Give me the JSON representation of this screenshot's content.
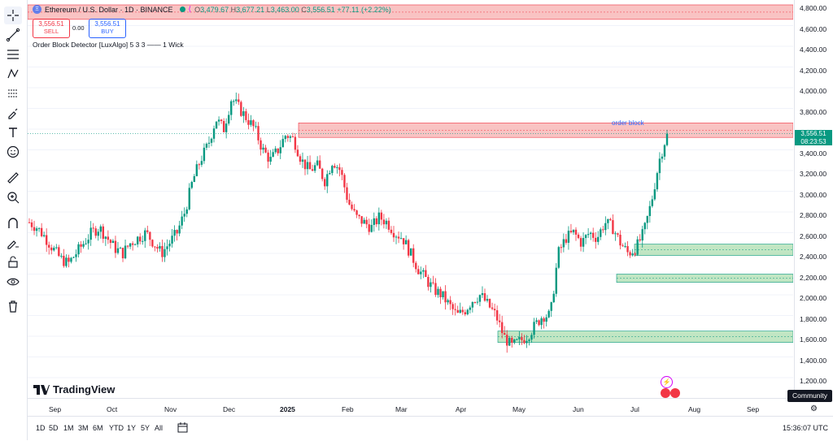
{
  "legend": {
    "symbol_icon": "ethereum-icon",
    "title": "Ethereum / U.S. Dollar · 1D · BINANCE",
    "o_label": "O",
    "o_value": "3,479.67",
    "h_label": "H",
    "h_value": "3,677.21",
    "l_label": "L",
    "l_value": "3,463.00",
    "c_label": "C",
    "c_value": "3,556.51",
    "change": "+77.11 (+2.22%)"
  },
  "trade": {
    "sell_price": "3,556.51",
    "sell_label": "SELL",
    "spread": "0.00",
    "buy_price": "3,556.51",
    "buy_label": "BUY"
  },
  "indicator": {
    "name": "Order Block Detector [LuxAlgo] 5 3 3 —— 1 Wick"
  },
  "annotations": {
    "order_block_label": "order block"
  },
  "price_tag": {
    "price": "3,556.51",
    "countdown": "08:23:53"
  },
  "price_axis": [
    "4,800.00",
    "4,600.00",
    "4,400.00",
    "4,200.00",
    "4,000.00",
    "3,800.00",
    "3,600.00",
    "3,400.00",
    "3,200.00",
    "3,000.00",
    "2,800.00",
    "2,600.00",
    "2,400.00",
    "2,200.00",
    "2,000.00",
    "1,800.00",
    "1,600.00",
    "1,400.00",
    "1,200.00"
  ],
  "time_axis": [
    "Sep",
    "Oct",
    "Nov",
    "Dec",
    "2025",
    "Feb",
    "Mar",
    "Apr",
    "May",
    "Jun",
    "Jul",
    "Aug",
    "Sep"
  ],
  "ranges": [
    "1D",
    "5D",
    "1M",
    "3M",
    "6M",
    "YTD",
    "1Y",
    "5Y",
    "All"
  ],
  "clock": "15:36:07 UTC",
  "community_label": "Community",
  "brand": "TradingView",
  "colors": {
    "up": "#089981",
    "down": "#f23645",
    "bearish_block": "#f7a9a9",
    "bullish_block": "#a6dba9",
    "accent": "#2962ff"
  },
  "chart_data": {
    "type": "candlestick",
    "symbol": "Ethereum / U.S. Dollar",
    "interval": "1D",
    "exchange": "BINANCE",
    "ylim": [
      1150,
      4850
    ],
    "x_ticks": [
      "Sep",
      "Oct",
      "Nov",
      "Dec",
      "2025",
      "Feb",
      "Mar",
      "Apr",
      "May",
      "Jun",
      "Jul",
      "Aug",
      "Sep"
    ],
    "series_closes": [
      2700,
      2650,
      2560,
      2450,
      2350,
      2300,
      2400,
      2500,
      2600,
      2650,
      2550,
      2450,
      2400,
      2500,
      2550,
      2600,
      2500,
      2400,
      2500,
      2600,
      2800,
      3100,
      3300,
      3450,
      3700,
      3600,
      3900,
      3800,
      3700,
      3600,
      3400,
      3300,
      3400,
      3550,
      3500,
      3300,
      3200,
      3250,
      3100,
      3300,
      3200,
      2900,
      2750,
      2700,
      2650,
      2750,
      2700,
      2600,
      2550,
      2400,
      2250,
      2150,
      2050,
      2000,
      1900,
      1800,
      1850,
      1950,
      2000,
      1900,
      1800,
      1600,
      1500,
      1550,
      1600,
      1700,
      1800,
      1800,
      2400,
      2550,
      2600,
      2500,
      2600,
      2550,
      2700,
      2650,
      2500,
      2400,
      2450,
      2600,
      2900,
      3300,
      3556.51
    ],
    "order_blocks": [
      {
        "type": "bearish",
        "top": 3660,
        "bottom": 3520
      },
      {
        "type": "bullish",
        "top": 2490,
        "bottom": 2380
      },
      {
        "type": "bullish",
        "top": 2200,
        "bottom": 2120
      },
      {
        "type": "bullish",
        "top": 1650,
        "bottom": 1540
      },
      {
        "type": "bearish",
        "top": 4800,
        "bottom": 4660
      }
    ]
  }
}
